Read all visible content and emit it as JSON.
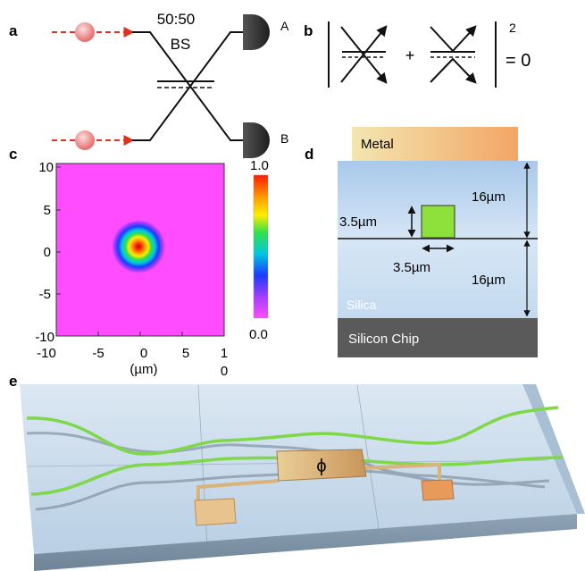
{
  "panels": {
    "a": {
      "letter": "a",
      "splitter_ratio": "50:50",
      "splitter_label": "BS",
      "detector_a": "A",
      "detector_b": "B"
    },
    "b": {
      "letter": "b",
      "plus": "+",
      "exponent": "2",
      "equals": "= 0"
    },
    "c": {
      "letter": "c",
      "y_ticks": [
        "10",
        "5",
        "0",
        "-5",
        "-10"
      ],
      "x_ticks": [
        "-10",
        "-5",
        "0",
        "5",
        "1"
      ],
      "x_tick_wrap": "0",
      "x_unit": "(µm)",
      "colorbar_max": "1.0",
      "colorbar_min": "0.0"
    },
    "d": {
      "letter": "d",
      "metal": "Metal",
      "core_width": "3.5µm",
      "core_height": "3.5µm",
      "upper_cladding": "16µm",
      "lower_cladding": "16µm",
      "silica": "Silica",
      "chip": "Silicon Chip"
    },
    "e": {
      "letter": "e",
      "phase_symbol": "ϕ"
    }
  },
  "colors": {
    "photon": "#f08a8a",
    "beam": "#e03020",
    "detector": "#3a3a3a",
    "core": "#8ee03a",
    "waveguide": "#7ed84a",
    "silica": "#c5dcf2",
    "chip": "#5a5a5a",
    "metal_left": "#f2e2a6",
    "metal_right": "#f3a868",
    "heater": "#d8b47a",
    "slab": "#cfe0f0"
  }
}
